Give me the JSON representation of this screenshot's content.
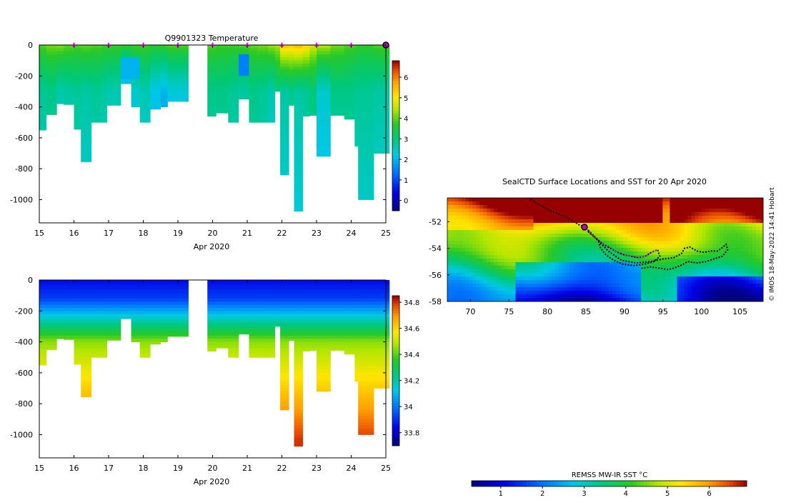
{
  "figure": {
    "credit": "© IMOS 18-May-2022 14:41 Hobart"
  },
  "chart_data": [
    {
      "id": "temperature-section",
      "type": "heatmap",
      "title": "Q9901323  Temperature",
      "xlabel": "Apr 2020",
      "ylabel": "",
      "xlim": [
        15,
        25
      ],
      "ylim": [
        -1150,
        0
      ],
      "xticks": [
        "15",
        "16",
        "17",
        "18",
        "19",
        "20",
        "21",
        "22",
        "23",
        "24",
        "25"
      ],
      "yticks": [
        "0",
        "-200",
        "-400",
        "-600",
        "-800",
        "-1000"
      ],
      "ytick_values": [
        0,
        -200,
        -400,
        -600,
        -800,
        -1000
      ],
      "colorbar": {
        "min": -0.5,
        "max": 6.8,
        "ticks": [
          "0",
          "1",
          "2",
          "3",
          "4",
          "5",
          "6"
        ],
        "tick_values": [
          0,
          1,
          2,
          3,
          4,
          5,
          6
        ]
      },
      "profile_markers": [
        16,
        17,
        18,
        19,
        20,
        21,
        22,
        23,
        24
      ],
      "current_marker": 25,
      "profiles": [
        {
          "x0": 15.0,
          "x1": 15.2,
          "maxdepth": 550,
          "surface": 4.0,
          "deep": 2.8
        },
        {
          "x0": 15.2,
          "x1": 15.5,
          "maxdepth": 450,
          "surface": 4.2,
          "deep": 2.9
        },
        {
          "x0": 15.5,
          "x1": 15.7,
          "maxdepth": 380,
          "surface": 4.3,
          "deep": 2.6
        },
        {
          "x0": 15.7,
          "x1": 16.0,
          "maxdepth": 385,
          "surface": 4.1,
          "deep": 2.7
        },
        {
          "x0": 16.0,
          "x1": 16.2,
          "maxdepth": 545,
          "surface": 4.0,
          "deep": 2.8
        },
        {
          "x0": 16.2,
          "x1": 16.5,
          "maxdepth": 755,
          "surface": 4.1,
          "deep": 2.7
        },
        {
          "x0": 16.5,
          "x1": 16.8,
          "maxdepth": 500,
          "surface": 4.0,
          "deep": 2.8
        },
        {
          "x0": 16.8,
          "x1": 16.95,
          "maxdepth": 500,
          "surface": 3.9,
          "deep": 2.7
        },
        {
          "x0": 16.95,
          "x1": 17.35,
          "maxdepth": 390,
          "surface": 3.9,
          "deep": 2.6
        },
        {
          "x0": 17.35,
          "x1": 17.65,
          "maxdepth": 250,
          "surface": 3.8,
          "deep": 1.8
        },
        {
          "x0": 17.65,
          "x1": 17.9,
          "maxdepth": 400,
          "surface": 3.9,
          "deep": 2.4
        },
        {
          "x0": 17.9,
          "x1": 18.2,
          "maxdepth": 500,
          "surface": 3.9,
          "deep": 2.6
        },
        {
          "x0": 18.2,
          "x1": 18.5,
          "maxdepth": 415,
          "surface": 3.8,
          "deep": 2.2
        },
        {
          "x0": 18.5,
          "x1": 18.7,
          "maxdepth": 400,
          "surface": 3.9,
          "deep": 2.0
        },
        {
          "x0": 18.7,
          "x1": 19.3,
          "maxdepth": 365,
          "surface": 4.0,
          "deep": 2.3
        },
        {
          "x0": 19.85,
          "x1": 20.1,
          "maxdepth": 460,
          "surface": 4.0,
          "deep": 2.9
        },
        {
          "x0": 20.1,
          "x1": 20.45,
          "maxdepth": 440,
          "surface": 3.9,
          "deep": 2.9
        },
        {
          "x0": 20.45,
          "x1": 20.75,
          "maxdepth": 500,
          "surface": 3.9,
          "deep": 2.8
        },
        {
          "x0": 20.75,
          "x1": 21.05,
          "maxdepth": 350,
          "surface": 4.0,
          "deep": 2.7
        },
        {
          "x0": 21.05,
          "x1": 21.3,
          "maxdepth": 500,
          "surface": 4.1,
          "deep": 2.9
        },
        {
          "x0": 21.3,
          "x1": 21.6,
          "maxdepth": 500,
          "surface": 4.2,
          "deep": 2.8
        },
        {
          "x0": 21.6,
          "x1": 21.8,
          "maxdepth": 500,
          "surface": 4.4,
          "deep": 2.6
        },
        {
          "x0": 21.8,
          "x1": 21.95,
          "maxdepth": 300,
          "surface": 4.5,
          "deep": 3.0
        },
        {
          "x0": 21.95,
          "x1": 22.2,
          "maxdepth": 840,
          "surface": 5.6,
          "deep": 2.7
        },
        {
          "x0": 22.2,
          "x1": 22.35,
          "maxdepth": 390,
          "surface": 5.5,
          "deep": 2.9
        },
        {
          "x0": 22.35,
          "x1": 22.6,
          "maxdepth": 1075,
          "surface": 5.7,
          "deep": 2.7
        },
        {
          "x0": 22.6,
          "x1": 22.8,
          "maxdepth": 460,
          "surface": 5.4,
          "deep": 2.8
        },
        {
          "x0": 22.8,
          "x1": 23.0,
          "maxdepth": 455,
          "surface": 4.8,
          "deep": 3.0
        },
        {
          "x0": 23.0,
          "x1": 23.4,
          "maxdepth": 720,
          "surface": 4.6,
          "deep": 2.4
        },
        {
          "x0": 23.4,
          "x1": 23.8,
          "maxdepth": 455,
          "surface": 4.2,
          "deep": 2.9
        },
        {
          "x0": 23.8,
          "x1": 24.1,
          "maxdepth": 480,
          "surface": 4.0,
          "deep": 2.9
        },
        {
          "x0": 24.1,
          "x1": 24.2,
          "maxdepth": 655,
          "surface": 3.9,
          "deep": 2.8
        },
        {
          "x0": 24.2,
          "x1": 24.65,
          "maxdepth": 1000,
          "surface": 3.8,
          "deep": 2.8
        },
        {
          "x0": 24.65,
          "x1": 25.1,
          "maxdepth": 700,
          "surface": 4.0,
          "deep": 2.7
        }
      ]
    },
    {
      "id": "salinity-section",
      "type": "heatmap",
      "title": "",
      "xlabel": "Apr 2020",
      "ylabel": "",
      "xlim": [
        15,
        25
      ],
      "ylim": [
        -1150,
        0
      ],
      "xticks": [
        "15",
        "16",
        "17",
        "18",
        "19",
        "20",
        "21",
        "22",
        "23",
        "24",
        "25"
      ],
      "yticks": [
        "0",
        "-200",
        "-400",
        "-600",
        "-800",
        "-1000"
      ],
      "ytick_values": [
        0,
        -200,
        -400,
        -600,
        -800,
        -1000
      ],
      "colorbar": {
        "min": 33.7,
        "max": 34.85,
        "ticks": [
          "33.8",
          "34",
          "34.2",
          "34.4",
          "34.6",
          "34.8"
        ],
        "tick_values": [
          33.8,
          34.0,
          34.2,
          34.4,
          34.6,
          34.8
        ]
      },
      "profiles_from": "temperature-section"
    },
    {
      "id": "sst-map",
      "type": "heatmap",
      "title": "SealCTD Surface Locations and SST for 20 Apr 2020",
      "xlabel": "",
      "ylabel": "",
      "xlim": [
        67,
        108
      ],
      "ylim": [
        -58,
        -50.2
      ],
      "xticks": [
        "70",
        "75",
        "80",
        "85",
        "90",
        "95",
        "100",
        "105"
      ],
      "xtick_values": [
        70,
        75,
        80,
        85,
        90,
        95,
        100,
        105
      ],
      "yticks": [
        "-52",
        "-54",
        "-56",
        "-58"
      ],
      "ytick_values": [
        -52,
        -54,
        -56,
        -58
      ],
      "colorbar": {
        "label": "REMSS MW-IR SST °C",
        "min": 0.3,
        "max": 6.9,
        "ticks": [
          "1",
          "2",
          "3",
          "4",
          "5",
          "6"
        ],
        "tick_values": [
          1,
          2,
          3,
          4,
          5,
          6
        ]
      },
      "current_location": [
        84.8,
        -52.4
      ],
      "track": [
        [
          77.8,
          -50.3
        ],
        [
          78.6,
          -50.6
        ],
        [
          79.5,
          -50.9
        ],
        [
          80.5,
          -51.2
        ],
        [
          81.4,
          -51.4
        ],
        [
          82.3,
          -51.6
        ],
        [
          83.2,
          -51.9
        ],
        [
          84.0,
          -52.2
        ],
        [
          84.8,
          -52.4
        ],
        [
          85.6,
          -52.8
        ],
        [
          86.4,
          -53.3
        ],
        [
          87.3,
          -53.7
        ],
        [
          88.2,
          -54.0
        ],
        [
          89.1,
          -54.3
        ],
        [
          90.0,
          -54.5
        ],
        [
          90.9,
          -54.6
        ],
        [
          91.8,
          -54.7
        ],
        [
          92.7,
          -54.6
        ],
        [
          93.5,
          -54.3
        ],
        [
          94.3,
          -54.1
        ],
        [
          94.6,
          -54.6
        ],
        [
          93.8,
          -55.0
        ],
        [
          92.6,
          -55.2
        ],
        [
          91.2,
          -55.3
        ],
        [
          89.8,
          -55.2
        ],
        [
          88.6,
          -54.9
        ],
        [
          87.6,
          -54.5
        ],
        [
          86.9,
          -54.0
        ],
        [
          86.6,
          -53.4
        ],
        [
          85.8,
          -53.0
        ],
        [
          85.2,
          -52.7
        ],
        [
          86.2,
          -53.2
        ],
        [
          87.9,
          -54.2
        ],
        [
          89.6,
          -54.9
        ],
        [
          91.5,
          -55.1
        ],
        [
          93.4,
          -55.0
        ],
        [
          95.0,
          -54.8
        ],
        [
          96.4,
          -54.7
        ],
        [
          97.4,
          -54.4
        ],
        [
          97.8,
          -54.0
        ],
        [
          98.5,
          -53.9
        ],
        [
          99.4,
          -54.2
        ],
        [
          100.3,
          -54.3
        ],
        [
          101.2,
          -54.2
        ],
        [
          102.1,
          -54.2
        ],
        [
          102.8,
          -53.9
        ],
        [
          103.2,
          -53.7
        ],
        [
          103.4,
          -54.1
        ],
        [
          102.7,
          -54.6
        ],
        [
          101.6,
          -54.8
        ],
        [
          100.6,
          -55.0
        ],
        [
          99.4,
          -55.1
        ],
        [
          98.2,
          -55.0
        ],
        [
          97.3,
          -55.3
        ],
        [
          96.4,
          -55.5
        ],
        [
          95.6,
          -55.6
        ],
        [
          94.6,
          -55.5
        ],
        [
          93.4,
          -55.4
        ],
        [
          92.2,
          -55.5
        ]
      ],
      "magenta_track": [
        [
          84.8,
          -52.4
        ],
        [
          85.6,
          -52.8
        ],
        [
          86.4,
          -53.3
        ],
        [
          87.3,
          -53.7
        ],
        [
          88.2,
          -54.0
        ],
        [
          89.1,
          -54.3
        ],
        [
          90.0,
          -54.5
        ],
        [
          90.9,
          -54.6
        ],
        [
          91.8,
          -54.7
        ],
        [
          92.7,
          -54.6
        ],
        [
          93.5,
          -54.3
        ],
        [
          94.3,
          -54.1
        ]
      ]
    }
  ]
}
